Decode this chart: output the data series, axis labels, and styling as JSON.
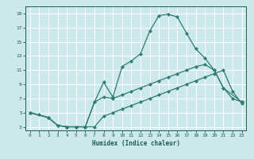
{
  "xlabel": "Humidex (Indice chaleur)",
  "bg_color": "#cce8ed",
  "grid_color": "#ffffff",
  "line_color": "#2e7d6e",
  "xlim": [
    -0.5,
    23.5
  ],
  "ylim": [
    2.5,
    20.0
  ],
  "xticks": [
    0,
    1,
    2,
    3,
    4,
    5,
    6,
    7,
    8,
    9,
    10,
    11,
    12,
    13,
    14,
    15,
    16,
    17,
    18,
    19,
    20,
    21,
    22,
    23
  ],
  "yticks": [
    3,
    5,
    7,
    9,
    11,
    13,
    15,
    17,
    19
  ],
  "line1_x": [
    0,
    1,
    2,
    3,
    4,
    5,
    6,
    7,
    8,
    9,
    10,
    11,
    12,
    13,
    14,
    15,
    16,
    17,
    18,
    19,
    20,
    21,
    22,
    23
  ],
  "line1_y": [
    5.0,
    4.7,
    4.3,
    3.2,
    3.0,
    3.0,
    3.0,
    6.5,
    9.3,
    7.2,
    11.5,
    12.3,
    13.3,
    16.5,
    18.7,
    18.9,
    18.5,
    16.2,
    14.0,
    12.7,
    11.0,
    8.5,
    7.0,
    6.5
  ],
  "line2_x": [
    0,
    2,
    3,
    4,
    5,
    6,
    7,
    8,
    9,
    10,
    11,
    12,
    13,
    14,
    15,
    16,
    17,
    18,
    19,
    20,
    21,
    23
  ],
  "line2_y": [
    5.0,
    4.3,
    3.2,
    3.0,
    3.0,
    3.0,
    6.5,
    7.2,
    7.0,
    7.5,
    8.0,
    8.5,
    9.0,
    9.5,
    10.0,
    10.5,
    11.0,
    11.5,
    11.8,
    11.0,
    8.5,
    6.5
  ],
  "line3_x": [
    0,
    2,
    3,
    4,
    5,
    6,
    7,
    8,
    9,
    10,
    11,
    12,
    13,
    14,
    15,
    16,
    17,
    18,
    19,
    20,
    21,
    22,
    23
  ],
  "line3_y": [
    5.0,
    4.3,
    3.2,
    3.0,
    3.0,
    3.0,
    3.0,
    4.5,
    5.0,
    5.5,
    6.0,
    6.5,
    7.0,
    7.5,
    8.0,
    8.5,
    9.0,
    9.5,
    10.0,
    10.5,
    11.0,
    8.0,
    6.3
  ]
}
